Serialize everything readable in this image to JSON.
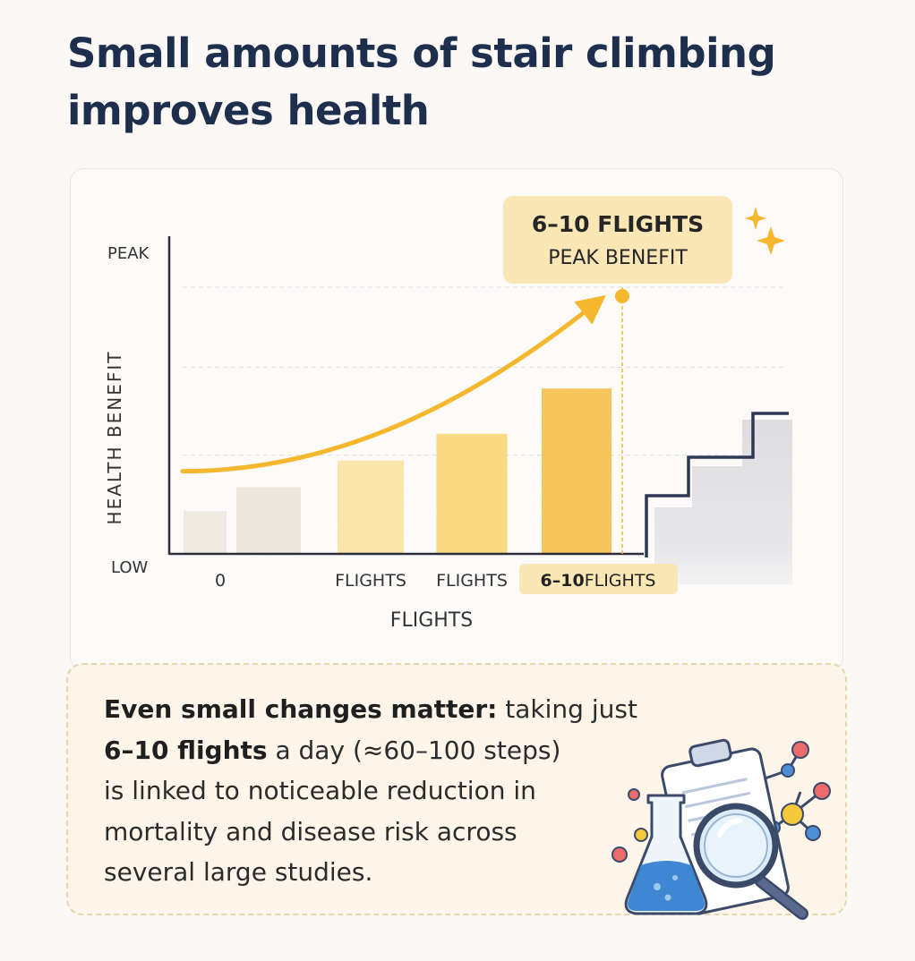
{
  "title": "Small amounts of stair climbing improves health",
  "chart_data": {
    "type": "bar",
    "categories": [
      "0",
      "",
      "FLIGHTS",
      "FLIGHTS",
      "6–10 FLIGHTS"
    ],
    "tick_labels": [
      {
        "index": 0,
        "text": "0",
        "highlight": false
      },
      {
        "index": 2,
        "text": "FLIGHTS",
        "highlight": false
      },
      {
        "index": 3,
        "text": "FLIGHTS",
        "highlight": false
      },
      {
        "index": 4,
        "bold": "6–10",
        "text": "FLIGHTS",
        "highlight": true
      }
    ],
    "values": [
      16,
      25,
      35,
      45,
      62
    ],
    "ylim": [
      0,
      100
    ],
    "y_tick_labels": [
      "LOW",
      "PEAK"
    ],
    "xlabel": "FLIGHTS",
    "ylabel": "HEALTH  BENEFIT",
    "gridlines_at": [
      37,
      70,
      100
    ],
    "bar_colors": [
      "#ece8df",
      "#ebe6dc",
      "#fbe3a0",
      "#fad671",
      "#f5c031"
    ],
    "trend": {
      "start_y": 31,
      "end_y": 94
    },
    "peak_marker_y": 100,
    "callout": {
      "headline": "6–10 FLIGHTS",
      "subline": "PEAK BENEFIT"
    },
    "colors": {
      "accent": "#f4b72e",
      "callout_bg": "#fbe6b5",
      "axis": "#2b2d38",
      "stair_outline": "#2e3855",
      "gridline": "#dedede"
    }
  },
  "note": {
    "lead_bold": "Even small changes matter:",
    "lead_rest": " taking just",
    "highlight_bold": "6–10 flights",
    "line2_rest": " a day (≈60–100 steps)",
    "line3": "is linked to noticeable reduction in",
    "line4": "mortality and disease risk across",
    "line5": "several large studies."
  },
  "illustration": {
    "icons": [
      "clipboard-icon",
      "flask-icon",
      "magnifier-icon",
      "molecule-icon"
    ]
  }
}
